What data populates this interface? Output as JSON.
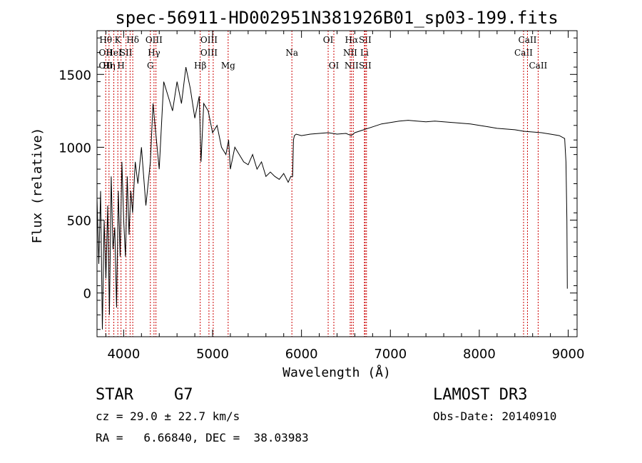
{
  "chart_data": {
    "type": "line",
    "title": "spec-56911-HD002951N381926B01_sp03-199.fits",
    "xlabel": "Wavelength (Å)",
    "ylabel": "Flux (relative)",
    "xlim": [
      3700,
      9100
    ],
    "ylim": [
      -300,
      1800
    ],
    "xticks": [
      4000,
      5000,
      6000,
      7000,
      8000,
      9000
    ],
    "yticks": [
      0,
      500,
      1000,
      1500
    ],
    "grid": false,
    "series": [
      {
        "name": "flux",
        "x": [
          3700,
          3720,
          3740,
          3760,
          3780,
          3800,
          3820,
          3840,
          3860,
          3880,
          3900,
          3920,
          3940,
          3960,
          3980,
          4000,
          4020,
          4040,
          4060,
          4080,
          4100,
          4130,
          4160,
          4200,
          4250,
          4300,
          4330,
          4360,
          4400,
          4450,
          4500,
          4550,
          4600,
          4650,
          4700,
          4750,
          4800,
          4850,
          4870,
          4900,
          4950,
          5000,
          5050,
          5100,
          5150,
          5180,
          5200,
          5250,
          5300,
          5350,
          5400,
          5450,
          5500,
          5550,
          5600,
          5650,
          5700,
          5750,
          5800,
          5850,
          5880,
          5900,
          5910,
          5920,
          5940,
          6000,
          6100,
          6200,
          6300,
          6400,
          6500,
          6560,
          6600,
          6700,
          6800,
          6900,
          7000,
          7100,
          7200,
          7300,
          7400,
          7500,
          7600,
          7700,
          7800,
          7900,
          8000,
          8100,
          8200,
          8300,
          8400,
          8500,
          8600,
          8700,
          8800,
          8900,
          8960,
          8975,
          8985,
          8990
        ],
        "y": [
          650,
          200,
          700,
          -250,
          500,
          100,
          600,
          -150,
          800,
          300,
          450,
          -100,
          700,
          250,
          900,
          500,
          250,
          800,
          400,
          700,
          550,
          900,
          750,
          1000,
          600,
          900,
          1300,
          1100,
          850,
          1450,
          1350,
          1250,
          1450,
          1300,
          1550,
          1400,
          1200,
          1350,
          900,
          1300,
          1250,
          1100,
          1150,
          1000,
          950,
          1050,
          850,
          1000,
          950,
          900,
          880,
          950,
          850,
          900,
          800,
          830,
          800,
          780,
          820,
          760,
          800,
          800,
          1050,
          1080,
          1090,
          1080,
          1090,
          1095,
          1100,
          1090,
          1095,
          1080,
          1100,
          1120,
          1140,
          1160,
          1170,
          1180,
          1185,
          1180,
          1175,
          1180,
          1175,
          1170,
          1165,
          1160,
          1150,
          1140,
          1130,
          1125,
          1120,
          1110,
          1105,
          1100,
          1090,
          1080,
          1060,
          900,
          500,
          30
        ]
      }
    ],
    "line_markers": [
      {
        "w": 3798,
        "top": "Hθ",
        "row1": "OII",
        "row2": "OII"
      },
      {
        "w": 3835,
        "top": "",
        "row1": "",
        "row2": "Hη"
      },
      {
        "w": 3889,
        "top": "",
        "row1": "HeI",
        "row2": ""
      },
      {
        "w": 3934,
        "top": "K",
        "row1": "",
        "row2": ""
      },
      {
        "w": 3970,
        "top": "",
        "row1": "",
        "row2": "H"
      },
      {
        "w": 4026,
        "top": "",
        "row1": "SII",
        "row2": ""
      },
      {
        "w": 4072,
        "top": "",
        "row1": "",
        "row2": ""
      },
      {
        "w": 4102,
        "top": "Hδ",
        "row1": "",
        "row2": ""
      },
      {
        "w": 4300,
        "top": "",
        "row1": "",
        "row2": "G"
      },
      {
        "w": 4341,
        "top": "OIII",
        "row1": "Hγ",
        "row2": ""
      },
      {
        "w": 4363,
        "top": "",
        "row1": "",
        "row2": ""
      },
      {
        "w": 4861,
        "top": "",
        "row1": "",
        "row2": "Hβ"
      },
      {
        "w": 4959,
        "top": "OIII",
        "row1": "OIII",
        "row2": ""
      },
      {
        "w": 5007,
        "top": "",
        "row1": "",
        "row2": ""
      },
      {
        "w": 5175,
        "top": "",
        "row1": "",
        "row2": "Mg"
      },
      {
        "w": 5892,
        "top": "",
        "row1": "Na",
        "row2": ""
      },
      {
        "w": 6300,
        "top": "OI",
        "row1": "",
        "row2": ""
      },
      {
        "w": 6364,
        "top": "",
        "row1": "",
        "row2": "OI"
      },
      {
        "w": 6548,
        "top": "",
        "row1": "NII",
        "row2": ""
      },
      {
        "w": 6563,
        "top": "Hα",
        "row1": "",
        "row2": "NII"
      },
      {
        "w": 6583,
        "top": "",
        "row1": "",
        "row2": ""
      },
      {
        "w": 6708,
        "top": "",
        "row1": "Li",
        "row2": ""
      },
      {
        "w": 6716,
        "top": "SII",
        "row1": "",
        "row2": "SII"
      },
      {
        "w": 6731,
        "top": "",
        "row1": "",
        "row2": ""
      },
      {
        "w": 8498,
        "top": "",
        "row1": "CaII",
        "row2": ""
      },
      {
        "w": 8542,
        "top": "CaII",
        "row1": "",
        "row2": ""
      },
      {
        "w": 8662,
        "top": "",
        "row1": "",
        "row2": "CaII"
      }
    ]
  },
  "info": {
    "object_class": "STAR",
    "subclass": "G7",
    "survey": "LAMOST DR3",
    "redshift": "cz = 29.0 ± 22.7 km/s",
    "obs_date": "Obs-Date: 20140910",
    "coords": "RA =   6.66840, DEC =  38.03983"
  }
}
